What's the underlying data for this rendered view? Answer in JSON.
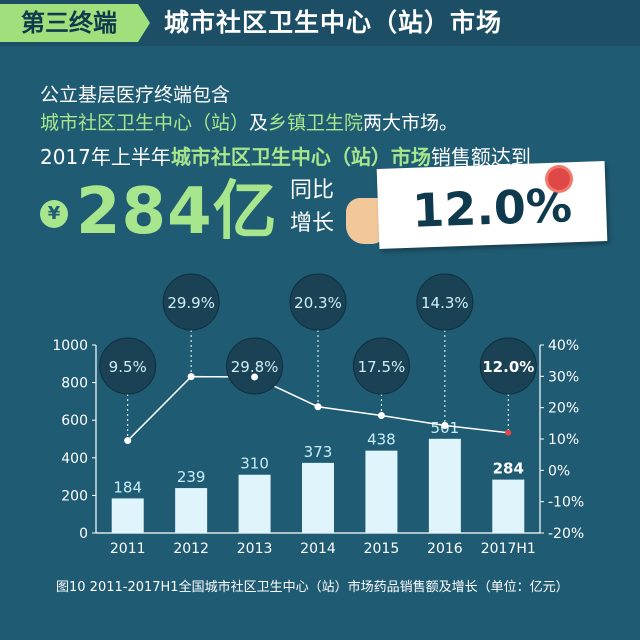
{
  "banner": {
    "tag": "第三终端",
    "title": "城市社区卫生中心（站）市场"
  },
  "intro": {
    "line1": "公立基层医疗终端包含",
    "line2_hl": "城市社区卫生中心（站）",
    "line2_a": "及",
    "line2_hl2": "乡镇卫生院",
    "line2_b": "两大市场。",
    "line3_a": "2017年上半年",
    "line3_hl": "城市社区卫生中心（站）市场",
    "line3_b": "销售额达到"
  },
  "headline": {
    "currency_symbol": "¥",
    "value": "284亿",
    "yoy_label_1": "同比",
    "yoy_label_2": "增长",
    "yoy_value": "12.0%"
  },
  "caption": "图10  2011-2017H1全国城市社区卫生中心（站）市场药品销售额及增长（单位：亿元）",
  "colors": {
    "background": "#1f5b73",
    "accent": "#a7e68c",
    "bar": "#dff4fb",
    "line": "#ffffff",
    "bubble": "#1a4254",
    "last_point": "#e04848"
  },
  "chart_data": {
    "type": "bar",
    "categories": [
      "2011",
      "2012",
      "2013",
      "2014",
      "2015",
      "2016",
      "2017H1"
    ],
    "series": [
      {
        "type": "bar",
        "values": [
          184,
          239,
          310,
          373,
          438,
          501,
          284
        ],
        "labels": [
          "184",
          "239",
          "310",
          "373",
          "438",
          "501",
          "284"
        ]
      },
      {
        "type": "line",
        "axis": "right",
        "values": [
          9.5,
          29.9,
          29.8,
          20.3,
          17.5,
          14.3,
          12.0
        ],
        "labels": [
          "9.5%",
          "29.9%",
          "29.8%",
          "20.3%",
          "17.5%",
          "14.3%",
          "12.0%"
        ]
      }
    ],
    "ylim": [
      0,
      1000
    ],
    "yticks": [
      "0",
      "200",
      "400",
      "600",
      "800",
      "1000"
    ],
    "y2lim": [
      -20,
      40
    ],
    "y2ticks": [
      "-20%",
      "-10%",
      "0%",
      "10%",
      "20%",
      "30%",
      "40%"
    ],
    "grid": false
  }
}
